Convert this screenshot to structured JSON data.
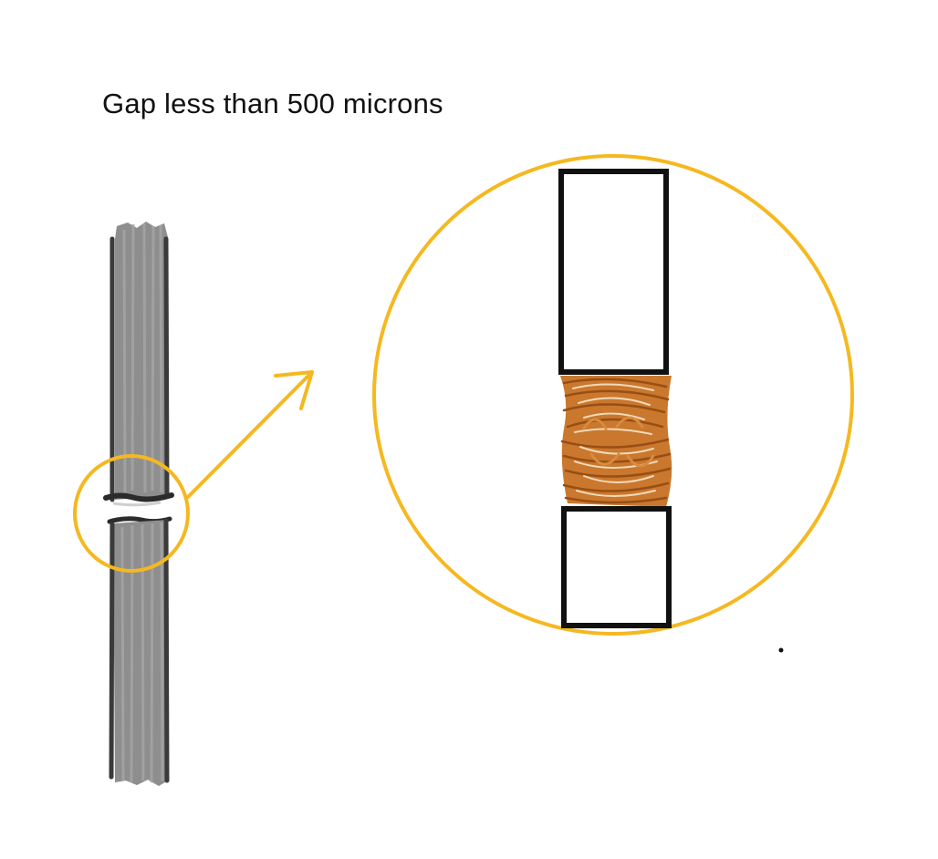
{
  "caption": "Gap less than 500 microns",
  "colors": {
    "background": "#ffffff",
    "highlight_ring": "#F5B820",
    "outline": "#111111",
    "shaft_fill": "#8E8E8E",
    "shaft_edge": "#3A3A3A",
    "fibers": "#C9782E",
    "fibers_dark": "#9A4E14"
  },
  "icons": {
    "pointer": "arrow-up-right-icon",
    "zoom_ring": "magnifier-circle-icon"
  }
}
